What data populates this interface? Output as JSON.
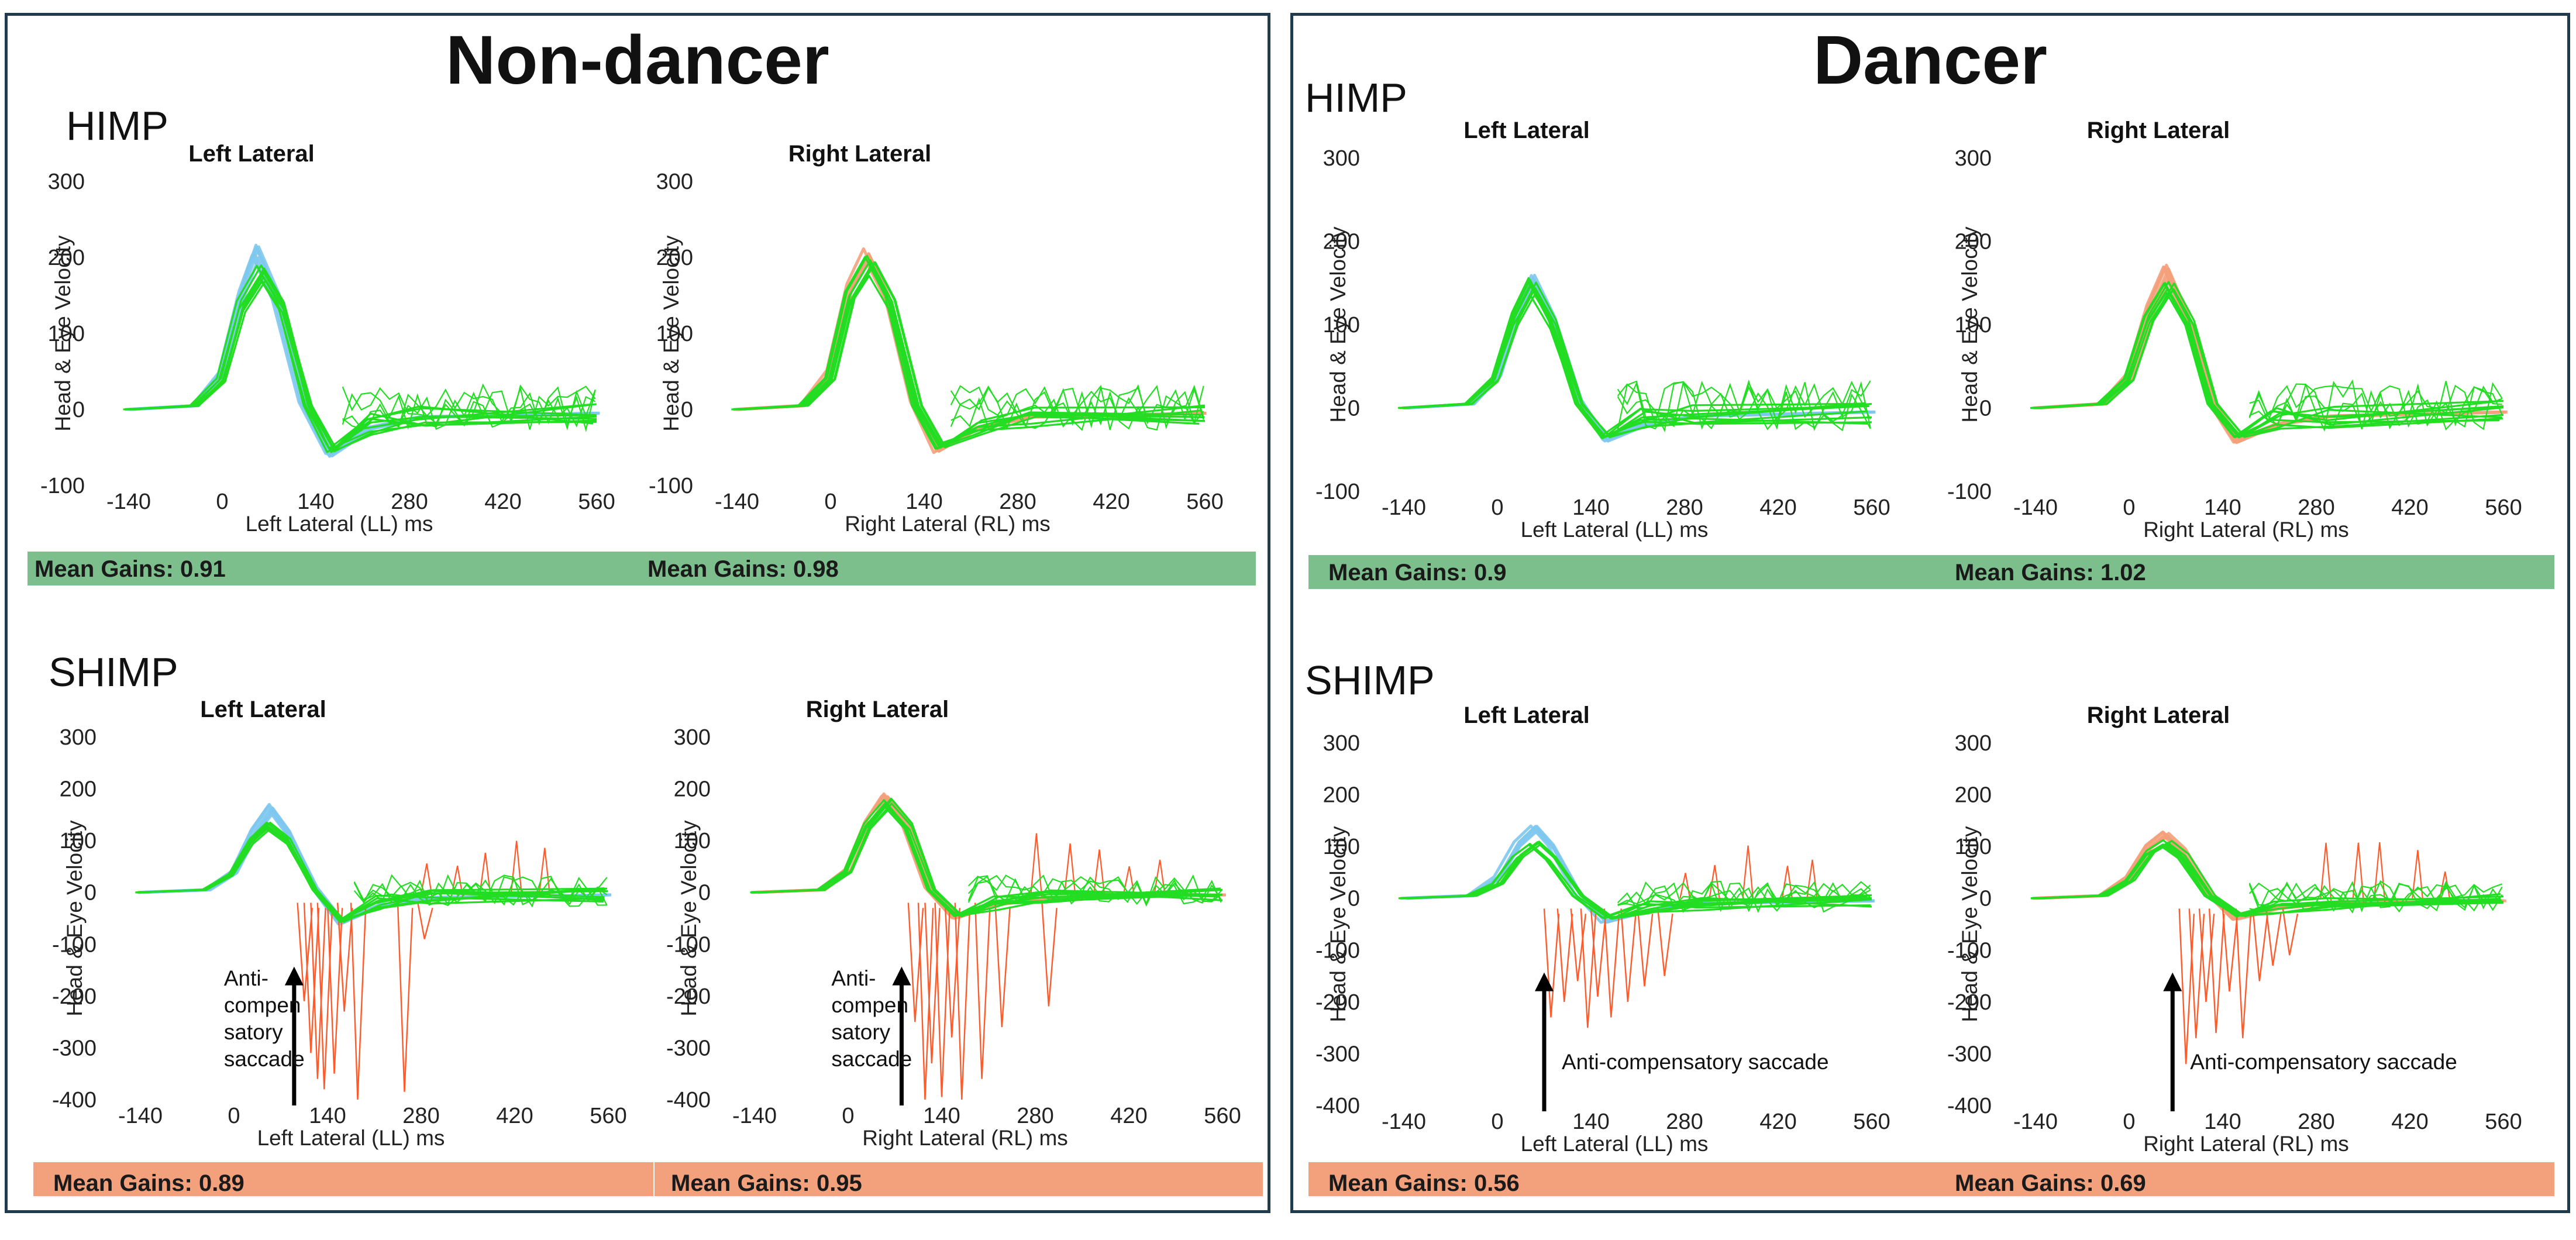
{
  "figure": {
    "nondancer_title": "Non-dancer",
    "dancer_title": "Dancer",
    "himp_label": "HIMP",
    "shimp_label": "SHIMP"
  },
  "gains": {
    "nd_himp_left": "Mean Gains: 0.91",
    "nd_himp_right": "Mean Gains: 0.98",
    "nd_shimp_left": "Mean Gains: 0.89",
    "nd_shimp_right": "Mean Gains: 0.95",
    "d_himp_left": "Mean Gains: 0.9",
    "d_himp_right": "Mean Gains: 1.02",
    "d_shimp_left": "Mean Gains: 0.56",
    "d_shimp_right": "Mean Gains: 0.69"
  },
  "colors": {
    "head": "#7ec8ee",
    "head_right": "#f4a07a",
    "eye": "#22dd22",
    "saccade": "#ff5a2a",
    "himp_bar": "#7dbf8c",
    "shimp_bar": "#f3a07d",
    "frame": "#1f3b4d"
  },
  "chart_data": [
    {
      "id": "nd-himp-left",
      "type": "line",
      "title": "Left Lateral",
      "xlabel": "Left Lateral (LL) ms",
      "ylabel": "Head & Eye Velocity",
      "xticks": [
        -140,
        0,
        140,
        280,
        420,
        560
      ],
      "yticks": [
        -100,
        0,
        100,
        200,
        300
      ],
      "xlim": [
        -140,
        560
      ],
      "ylim": [
        -100,
        300
      ],
      "head_color": "#7ec8ee",
      "head_peak": 210,
      "eye_peak": 185,
      "series": [
        {
          "name": "Head velocity",
          "x": [
            -140,
            -40,
            0,
            30,
            50,
            80,
            120,
            160,
            220,
            300,
            560
          ],
          "y": [
            0,
            5,
            50,
            160,
            210,
            150,
            10,
            -60,
            -25,
            -10,
            -5
          ]
        },
        {
          "name": "Eye velocity",
          "x": [
            -140,
            -40,
            0,
            30,
            60,
            90,
            130,
            165,
            220,
            300,
            560
          ],
          "y": [
            0,
            5,
            40,
            140,
            185,
            140,
            5,
            -55,
            -20,
            -10,
            -5
          ]
        }
      ],
      "saccades": []
    },
    {
      "id": "nd-himp-right",
      "type": "line",
      "title": "Right Lateral",
      "xlabel": "Right Lateral (RL) ms",
      "ylabel": "Head & Eye Velocity",
      "xticks": [
        -140,
        0,
        140,
        280,
        420,
        560
      ],
      "yticks": [
        -100,
        0,
        100,
        200,
        300
      ],
      "xlim": [
        -140,
        560
      ],
      "ylim": [
        -100,
        300
      ],
      "head_color": "#f4a07a",
      "head_peak": 205,
      "eye_peak": 195,
      "series": [
        {
          "name": "Head velocity",
          "x": [
            -140,
            -40,
            0,
            30,
            55,
            85,
            125,
            160,
            220,
            300,
            560
          ],
          "y": [
            0,
            5,
            50,
            160,
            205,
            150,
            10,
            -55,
            -25,
            -10,
            -5
          ]
        },
        {
          "name": "Eye velocity",
          "x": [
            -140,
            -40,
            0,
            30,
            60,
            90,
            130,
            165,
            220,
            300,
            560
          ],
          "y": [
            0,
            5,
            40,
            150,
            195,
            145,
            5,
            -50,
            -20,
            -10,
            -5
          ]
        }
      ],
      "saccades": []
    },
    {
      "id": "nd-shimp-left",
      "type": "line",
      "title": "Left Lateral",
      "xlabel": "Left Lateral (LL) ms",
      "ylabel": "Head & Eye Velocity",
      "xticks": [
        -140,
        0,
        140,
        280,
        420,
        560
      ],
      "yticks": [
        -400,
        -300,
        -200,
        -100,
        0,
        100,
        200,
        300
      ],
      "xlim": [
        -140,
        560
      ],
      "ylim": [
        -400,
        300
      ],
      "head_color": "#7ec8ee",
      "head_peak": 165,
      "eye_peak": 130,
      "annotation": "Anti-compen satory saccade",
      "annotation_lines": [
        "Anti-",
        "compen",
        "satory",
        "saccade"
      ],
      "annotation_x": 90,
      "series": [
        {
          "name": "Head velocity",
          "x": [
            -140,
            -40,
            0,
            30,
            55,
            80,
            120,
            160,
            220,
            300,
            560
          ],
          "y": [
            0,
            5,
            40,
            120,
            165,
            120,
            10,
            -60,
            -25,
            -10,
            -5
          ]
        },
        {
          "name": "Eye velocity",
          "x": [
            -140,
            -40,
            0,
            30,
            55,
            85,
            125,
            165,
            220,
            300,
            560
          ],
          "y": [
            0,
            5,
            35,
            100,
            130,
            100,
            5,
            -55,
            -20,
            -10,
            -5
          ]
        }
      ],
      "saccades": [
        {
          "x": 105,
          "depth": -210
        },
        {
          "x": 115,
          "depth": -310
        },
        {
          "x": 125,
          "depth": -360
        },
        {
          "x": 135,
          "depth": -380
        },
        {
          "x": 150,
          "depth": -350
        },
        {
          "x": 165,
          "depth": -230
        },
        {
          "x": 185,
          "depth": -400
        },
        {
          "x": 255,
          "depth": -385
        },
        {
          "x": 285,
          "depth": -90
        }
      ]
    },
    {
      "id": "nd-shimp-right",
      "type": "line",
      "title": "Right Lateral",
      "xlabel": "Right Lateral (RL) ms",
      "ylabel": "Head & Eye Velocity",
      "xticks": [
        -140,
        0,
        140,
        280,
        420,
        560
      ],
      "yticks": [
        -400,
        -300,
        -200,
        -100,
        0,
        100,
        200,
        300
      ],
      "xlim": [
        -140,
        560
      ],
      "ylim": [
        -400,
        300
      ],
      "head_color": "#f4a07a",
      "head_peak": 190,
      "eye_peak": 175,
      "annotation": "Anti-compen satory saccade",
      "annotation_lines": [
        "Anti-",
        "compen",
        "satory",
        "saccade"
      ],
      "annotation_x": 80,
      "series": [
        {
          "name": "Head velocity",
          "x": [
            -140,
            -40,
            0,
            30,
            55,
            85,
            120,
            160,
            220,
            300,
            560
          ],
          "y": [
            0,
            5,
            45,
            140,
            190,
            140,
            10,
            -50,
            -25,
            -10,
            -5
          ]
        },
        {
          "name": "Eye velocity",
          "x": [
            -140,
            -40,
            0,
            30,
            60,
            90,
            125,
            165,
            220,
            300,
            560
          ],
          "y": [
            0,
            5,
            40,
            130,
            175,
            130,
            5,
            -45,
            -20,
            -10,
            -5
          ]
        }
      ],
      "saccades": [
        {
          "x": 100,
          "depth": -250
        },
        {
          "x": 115,
          "depth": -400
        },
        {
          "x": 125,
          "depth": -330
        },
        {
          "x": 140,
          "depth": -395
        },
        {
          "x": 155,
          "depth": -280
        },
        {
          "x": 170,
          "depth": -400
        },
        {
          "x": 200,
          "depth": -360
        },
        {
          "x": 230,
          "depth": -260
        },
        {
          "x": 300,
          "depth": -220
        }
      ]
    },
    {
      "id": "d-himp-left",
      "type": "line",
      "title": "Left Lateral",
      "xlabel": "Left Lateral (LL) ms",
      "ylabel": "Head & Eye Velocity",
      "xticks": [
        -140,
        0,
        140,
        280,
        420,
        560
      ],
      "yticks": [
        -100,
        0,
        100,
        200,
        300
      ],
      "xlim": [
        -140,
        560
      ],
      "ylim": [
        -100,
        300
      ],
      "head_color": "#7ec8ee",
      "head_peak": 160,
      "eye_peak": 150,
      "series": [
        {
          "name": "Head velocity",
          "x": [
            -140,
            -40,
            0,
            30,
            50,
            80,
            120,
            160,
            220,
            300,
            560
          ],
          "y": [
            0,
            5,
            40,
            120,
            160,
            110,
            10,
            -40,
            -20,
            -10,
            -5
          ]
        },
        {
          "name": "Eye velocity",
          "x": [
            -140,
            -40,
            0,
            30,
            55,
            85,
            125,
            165,
            220,
            300,
            560
          ],
          "y": [
            0,
            5,
            35,
            110,
            150,
            105,
            5,
            -35,
            -15,
            -10,
            -5
          ]
        }
      ],
      "saccades": []
    },
    {
      "id": "d-himp-right",
      "type": "line",
      "title": "Right Lateral",
      "xlabel": "Right Lateral (RL) ms",
      "ylabel": "Head & Eye Velocity",
      "xticks": [
        -140,
        0,
        140,
        280,
        420,
        560
      ],
      "yticks": [
        -100,
        0,
        100,
        200,
        300
      ],
      "xlim": [
        -140,
        560
      ],
      "ylim": [
        -100,
        300
      ],
      "head_color": "#f4a07a",
      "head_peak": 165,
      "eye_peak": 150,
      "series": [
        {
          "name": "Head velocity",
          "x": [
            -140,
            -40,
            0,
            30,
            55,
            85,
            120,
            160,
            220,
            300,
            560
          ],
          "y": [
            0,
            5,
            40,
            120,
            165,
            110,
            10,
            -40,
            -20,
            -10,
            -5
          ]
        },
        {
          "name": "Eye velocity",
          "x": [
            -140,
            -40,
            0,
            30,
            60,
            90,
            125,
            165,
            220,
            300,
            560
          ],
          "y": [
            0,
            5,
            35,
            110,
            150,
            105,
            5,
            -35,
            -15,
            -10,
            -5
          ]
        }
      ],
      "saccades": []
    },
    {
      "id": "d-shimp-left",
      "type": "line",
      "title": "Left Lateral",
      "xlabel": "Left Lateral (LL) ms",
      "ylabel": "Head & Eye Velocity",
      "xticks": [
        -140,
        0,
        140,
        280,
        420,
        560
      ],
      "yticks": [
        -400,
        -300,
        -200,
        -100,
        0,
        100,
        200,
        300
      ],
      "xlim": [
        -140,
        560
      ],
      "ylim": [
        -400,
        300
      ],
      "head_color": "#7ec8ee",
      "head_peak": 135,
      "eye_peak": 110,
      "annotation": "Anti-compensatory saccade",
      "annotation_lines": [
        "Anti-compensatory saccade"
      ],
      "annotation_x": 70,
      "series": [
        {
          "name": "Head velocity",
          "x": [
            -140,
            -40,
            0,
            30,
            55,
            80,
            120,
            160,
            220,
            300,
            560
          ],
          "y": [
            0,
            5,
            40,
            105,
            135,
            100,
            10,
            -45,
            -25,
            -10,
            -5
          ]
        },
        {
          "name": "Eye velocity",
          "x": [
            -140,
            -40,
            0,
            30,
            55,
            80,
            120,
            165,
            220,
            300,
            560
          ],
          "y": [
            0,
            5,
            30,
            85,
            110,
            80,
            5,
            -40,
            -20,
            -10,
            -5
          ]
        }
      ],
      "saccades": [
        {
          "x": 80,
          "depth": -230
        },
        {
          "x": 100,
          "depth": -200
        },
        {
          "x": 120,
          "depth": -160
        },
        {
          "x": 135,
          "depth": -250
        },
        {
          "x": 150,
          "depth": -190
        },
        {
          "x": 170,
          "depth": -230
        },
        {
          "x": 195,
          "depth": -200
        },
        {
          "x": 220,
          "depth": -170
        },
        {
          "x": 250,
          "depth": -150
        }
      ]
    },
    {
      "id": "d-shimp-right",
      "type": "line",
      "title": "Right Lateral",
      "xlabel": "Right Lateral (RL) ms",
      "ylabel": "Head & Eye Velocity",
      "xticks": [
        -140,
        0,
        140,
        280,
        420,
        560
      ],
      "yticks": [
        -400,
        -300,
        -200,
        -100,
        0,
        100,
        200,
        300
      ],
      "xlim": [
        -140,
        560
      ],
      "ylim": [
        -400,
        300
      ],
      "head_color": "#f4a07a",
      "head_peak": 125,
      "eye_peak": 110,
      "annotation": "Anti-compensatory saccade",
      "annotation_lines": [
        "Anti-compensatory saccade"
      ],
      "annotation_x": 65,
      "series": [
        {
          "name": "Head velocity",
          "x": [
            -140,
            -40,
            0,
            30,
            55,
            80,
            120,
            160,
            220,
            300,
            560
          ],
          "y": [
            0,
            5,
            40,
            100,
            125,
            95,
            10,
            -40,
            -20,
            -10,
            -5
          ]
        },
        {
          "name": "Eye velocity",
          "x": [
            -140,
            -40,
            0,
            30,
            55,
            80,
            120,
            165,
            220,
            300,
            560
          ],
          "y": [
            0,
            5,
            35,
            90,
            110,
            85,
            5,
            -35,
            -20,
            -10,
            -5
          ]
        }
      ],
      "saccades": [
        {
          "x": 85,
          "depth": -320
        },
        {
          "x": 100,
          "depth": -270
        },
        {
          "x": 115,
          "depth": -200
        },
        {
          "x": 130,
          "depth": -260
        },
        {
          "x": 150,
          "depth": -180
        },
        {
          "x": 170,
          "depth": -270
        },
        {
          "x": 195,
          "depth": -160
        },
        {
          "x": 215,
          "depth": -130
        },
        {
          "x": 240,
          "depth": -110
        }
      ]
    }
  ]
}
